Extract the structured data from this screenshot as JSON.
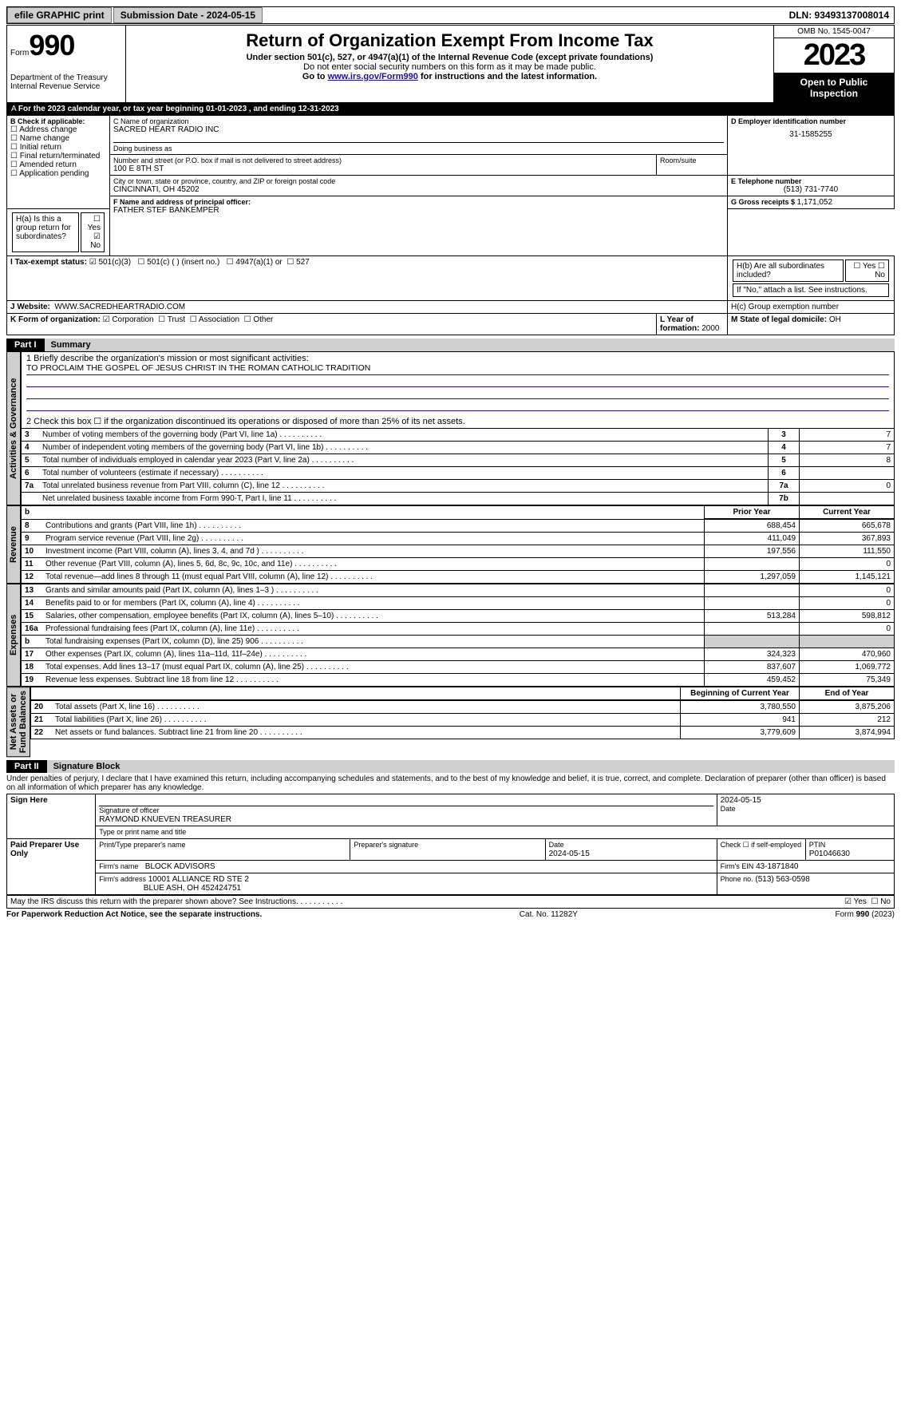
{
  "top": {
    "efile": "efile GRAPHIC print",
    "submission_label": "Submission Date - 2024-05-15",
    "dln": "DLN: 93493137008014"
  },
  "header": {
    "form_label": "Form",
    "form_number": "990",
    "title": "Return of Organization Exempt From Income Tax",
    "subtitle1": "Under section 501(c), 527, or 4947(a)(1) of the Internal Revenue Code (except private foundations)",
    "subtitle2": "Do not enter social security numbers on this form as it may be made public.",
    "subtitle3_pre": "Go to ",
    "subtitle3_link": "www.irs.gov/Form990",
    "subtitle3_post": " for instructions and the latest information.",
    "dept": "Department of the Treasury\nInternal Revenue Service",
    "omb": "OMB No. 1545-0047",
    "year": "2023",
    "open": "Open to Public Inspection"
  },
  "line_a": "For the 2023 calendar year, or tax year beginning 01-01-2023   , and ending 12-31-2023",
  "box_b": {
    "title": "B Check if applicable:",
    "items": [
      "Address change",
      "Name change",
      "Initial return",
      "Final return/terminated",
      "Amended return",
      "Application pending"
    ]
  },
  "box_c": {
    "name_lbl": "C Name of organization",
    "name": "SACRED HEART RADIO INC",
    "dba_lbl": "Doing business as",
    "addr_lbl": "Number and street (or P.O. box if mail is not delivered to street address)",
    "addr": "100 E 8TH ST",
    "room_lbl": "Room/suite",
    "city_lbl": "City or town, state or province, country, and ZIP or foreign postal code",
    "city": "CINCINNATI, OH  45202"
  },
  "box_d": {
    "lbl": "D Employer identification number",
    "val": "31-1585255"
  },
  "box_e": {
    "lbl": "E Telephone number",
    "val": "(513) 731-7740"
  },
  "box_g": {
    "lbl": "G Gross receipts $ ",
    "val": "1,171,052"
  },
  "box_f": {
    "lbl": "F  Name and address of principal officer:",
    "val": "FATHER STEF BANKEMPER"
  },
  "box_h": {
    "a": "H(a)  Is this a group return for subordinates?",
    "b": "H(b)  Are all subordinates included?",
    "no_note": "If \"No,\" attach a list. See instructions.",
    "c": "H(c)  Group exemption number"
  },
  "tax_status": {
    "label": "I   Tax-exempt status:",
    "opts": [
      "501(c)(3)",
      "501(c) (  ) (insert no.)",
      "4947(a)(1) or",
      "527"
    ],
    "checked": 0
  },
  "website": {
    "label": "J   Website:",
    "val": "WWW.SACREDHEARTRADIO.COM"
  },
  "box_k": {
    "label": "K Form of organization:",
    "opts": [
      "Corporation",
      "Trust",
      "Association",
      "Other"
    ],
    "checked": 0
  },
  "box_l": {
    "label": "L Year of formation: ",
    "val": "2000"
  },
  "box_m": {
    "label": "M State of legal domicile: ",
    "val": "OH"
  },
  "part1": {
    "tag": "Part I",
    "title": "Summary",
    "q1_lbl": "1  Briefly describe the organization's mission or most significant activities:",
    "q1_val": "TO PROCLAIM THE GOSPEL OF JESUS CHRIST IN THE ROMAN CATHOLIC TRADITION",
    "q2": "2   Check this box ☐  if the organization discontinued its operations or disposed of more than 25% of its net assets.",
    "rows_top": [
      {
        "n": "3",
        "t": "Number of voting members of the governing body (Part VI, line 1a)",
        "c": "3",
        "v": "7"
      },
      {
        "n": "4",
        "t": "Number of independent voting members of the governing body (Part VI, line 1b)",
        "c": "4",
        "v": "7"
      },
      {
        "n": "5",
        "t": "Total number of individuals employed in calendar year 2023 (Part V, line 2a)",
        "c": "5",
        "v": "8"
      },
      {
        "n": "6",
        "t": "Total number of volunteers (estimate if necessary)",
        "c": "6",
        "v": ""
      },
      {
        "n": "7a",
        "t": "Total unrelated business revenue from Part VIII, column (C), line 12",
        "c": "7a",
        "v": "0"
      },
      {
        "n": "",
        "t": "Net unrelated business taxable income from Form 990-T, Part I, line 11",
        "c": "7b",
        "v": ""
      }
    ],
    "col_hdrs": {
      "b": "b",
      "prior": "Prior Year",
      "curr": "Current Year"
    },
    "rows_rev": [
      {
        "n": "8",
        "t": "Contributions and grants (Part VIII, line 1h)",
        "p": "688,454",
        "c": "665,678"
      },
      {
        "n": "9",
        "t": "Program service revenue (Part VIII, line 2g)",
        "p": "411,049",
        "c": "367,893"
      },
      {
        "n": "10",
        "t": "Investment income (Part VIII, column (A), lines 3, 4, and 7d )",
        "p": "197,556",
        "c": "111,550"
      },
      {
        "n": "11",
        "t": "Other revenue (Part VIII, column (A), lines 5, 6d, 8c, 9c, 10c, and 11e)",
        "p": "",
        "c": "0"
      },
      {
        "n": "12",
        "t": "Total revenue—add lines 8 through 11 (must equal Part VIII, column (A), line 12)",
        "p": "1,297,059",
        "c": "1,145,121"
      }
    ],
    "rows_exp": [
      {
        "n": "13",
        "t": "Grants and similar amounts paid (Part IX, column (A), lines 1–3 )",
        "p": "",
        "c": "0"
      },
      {
        "n": "14",
        "t": "Benefits paid to or for members (Part IX, column (A), line 4)",
        "p": "",
        "c": "0"
      },
      {
        "n": "15",
        "t": "Salaries, other compensation, employee benefits (Part IX, column (A), lines 5–10)",
        "p": "513,284",
        "c": "598,812"
      },
      {
        "n": "16a",
        "t": "Professional fundraising fees (Part IX, column (A), line 11e)",
        "p": "",
        "c": "0"
      },
      {
        "n": "b",
        "t": "Total fundraising expenses (Part IX, column (D), line 25) 906",
        "p": "SHADE",
        "c": "SHADE"
      },
      {
        "n": "17",
        "t": "Other expenses (Part IX, column (A), lines 11a–11d, 11f–24e)",
        "p": "324,323",
        "c": "470,960"
      },
      {
        "n": "18",
        "t": "Total expenses. Add lines 13–17 (must equal Part IX, column (A), line 25)",
        "p": "837,607",
        "c": "1,069,772"
      },
      {
        "n": "19",
        "t": "Revenue less expenses. Subtract line 18 from line 12",
        "p": "459,452",
        "c": "75,349"
      }
    ],
    "na_hdrs": {
      "beg": "Beginning of Current Year",
      "end": "End of Year"
    },
    "rows_na": [
      {
        "n": "20",
        "t": "Total assets (Part X, line 16)",
        "p": "3,780,550",
        "c": "3,875,206"
      },
      {
        "n": "21",
        "t": "Total liabilities (Part X, line 26)",
        "p": "941",
        "c": "212"
      },
      {
        "n": "22",
        "t": "Net assets or fund balances. Subtract line 21 from line 20",
        "p": "3,779,609",
        "c": "3,874,994"
      }
    ],
    "vlabels": {
      "ag": "Activities & Governance",
      "rev": "Revenue",
      "exp": "Expenses",
      "na": "Net Assets or\nFund Balances"
    }
  },
  "part2": {
    "tag": "Part II",
    "title": "Signature Block",
    "decl": "Under penalties of perjury, I declare that I have examined this return, including accompanying schedules and statements, and to the best of my knowledge and belief, it is true, correct, and complete. Declaration of preparer (other than officer) is based on all information of which preparer has any knowledge.",
    "sign_here": "Sign Here",
    "sig_date": "2024-05-15",
    "sig_lbl": "Signature of officer",
    "sig_name": "RAYMOND KNUEVEN  TREASURER",
    "sig_type_lbl": "Type or print name and title",
    "date_lbl": "Date",
    "paid": "Paid Preparer Use Only",
    "pp_name_lbl": "Print/Type preparer's name",
    "pp_sig_lbl": "Preparer's signature",
    "pp_date": "2024-05-15",
    "pp_check": "Check ☐ if self-employed",
    "ptin_lbl": "PTIN",
    "ptin": "P01046630",
    "firm_name_lbl": "Firm's name",
    "firm_name": "BLOCK ADVISORS",
    "firm_ein_lbl": "Firm's EIN",
    "firm_ein": "43-1871840",
    "firm_addr_lbl": "Firm's address",
    "firm_addr1": "10001 ALLIANCE RD STE 2",
    "firm_addr2": "BLUE ASH, OH  452424751",
    "firm_phone_lbl": "Phone no.",
    "firm_phone": "(513) 563-0598",
    "discuss": "May the IRS discuss this return with the preparer shown above? See Instructions."
  },
  "footer": {
    "l": "For Paperwork Reduction Act Notice, see the separate instructions.",
    "c": "Cat. No. 11282Y",
    "r": "Form 990 (2023)"
  }
}
